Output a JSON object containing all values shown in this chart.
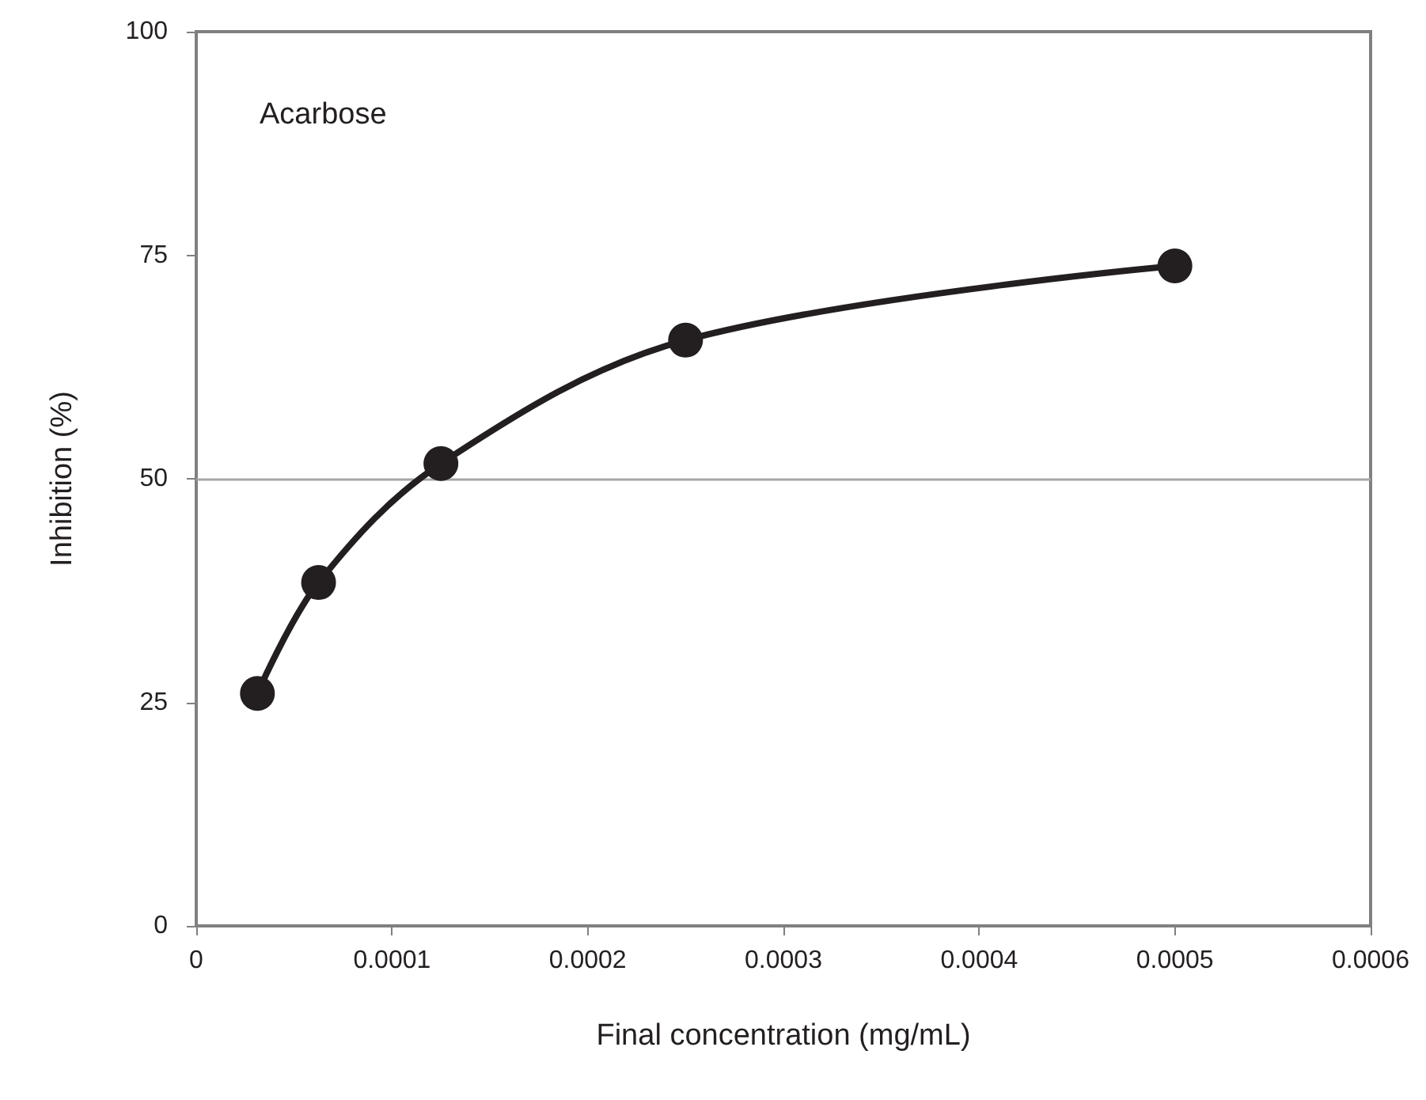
{
  "chart_data": {
    "type": "line",
    "xlabel": "Final concentration (mg/mL)",
    "ylabel": "Inhibition (%)",
    "x": [
      3.125e-05,
      6.25e-05,
      0.000125,
      0.00025,
      0.0005
    ],
    "series": [
      {
        "color": "#231f20",
        "values": [
          26.0,
          38.4,
          51.7,
          65.5,
          73.8
        ]
      }
    ],
    "xlim": [
      0,
      0.0006
    ],
    "xticks": [
      0,
      0.0001,
      0.0002,
      0.0003,
      0.0004,
      0.0005,
      0.0006
    ],
    "ylim": [
      0,
      100
    ],
    "yticks": [
      0,
      25,
      50,
      75,
      100
    ],
    "ref_lines": [
      {
        "axis": "y",
        "value": 50,
        "color": "#a6a6a6"
      }
    ],
    "annotations": [
      "Acarbose"
    ],
    "grid": false,
    "marker": "circle",
    "line_style": "solid"
  }
}
